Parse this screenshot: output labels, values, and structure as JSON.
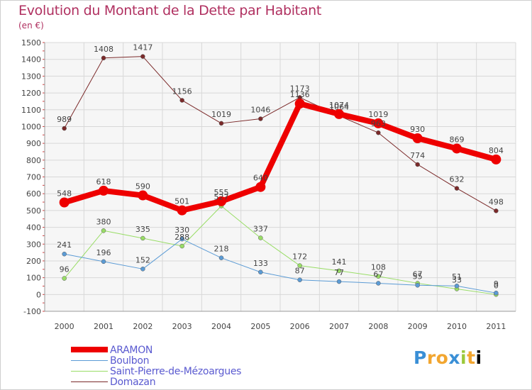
{
  "chart_data": {
    "type": "line",
    "title": "Evolution du Montant de la Dette par Habitant",
    "subtitle": "(en €)",
    "x": [
      "2000",
      "2001",
      "2002",
      "2003",
      "2004",
      "2005",
      "2006",
      "2007",
      "2008",
      "2009",
      "2010",
      "2011"
    ],
    "ylim": [
      -100,
      1500
    ],
    "yticks": [
      -100,
      0,
      100,
      200,
      300,
      400,
      500,
      600,
      700,
      800,
      900,
      1000,
      1100,
      1200,
      1300,
      1400,
      1500
    ],
    "grid": true,
    "legend_position": "bottom-left",
    "series": [
      {
        "name": "ARAMON",
        "color": "#ee0000",
        "width": 8,
        "marker": 7,
        "values": [
          548,
          618,
          590,
          501,
          555,
          640,
          1136,
          1074,
          1019,
          930,
          869,
          804
        ],
        "labels": [
          "548",
          "618",
          "590",
          "501",
          "555",
          "640",
          "1136",
          "1074",
          "1019",
          "930",
          "869",
          "804"
        ]
      },
      {
        "name": "Boulbon",
        "color": "#5b9bd5",
        "width": 1,
        "marker": 3,
        "values": [
          241,
          196,
          152,
          330,
          218,
          133,
          87,
          77,
          67,
          55,
          51,
          9
        ],
        "labels": [
          "241",
          "196",
          "152",
          "330",
          "218",
          "133",
          "87",
          "77",
          "67",
          "55",
          "51",
          "9"
        ]
      },
      {
        "name": "Saint-Pierre-de-Mézoargues",
        "color": "#99dd66",
        "width": 1,
        "marker": 3,
        "values": [
          96,
          380,
          335,
          288,
          527,
          337,
          172,
          141,
          108,
          67,
          33,
          0
        ],
        "labels": [
          "96",
          "380",
          "335",
          "288",
          "527",
          "337",
          "172",
          "141",
          "108",
          "67",
          "33",
          "0"
        ]
      },
      {
        "name": "Domazan",
        "color": "#7b2a2a",
        "width": 1,
        "marker": 3,
        "values": [
          989,
          1408,
          1417,
          1156,
          1019,
          1046,
          1173,
          1064,
          963,
          774,
          632,
          498
        ],
        "labels": [
          "989",
          "1408",
          "1417",
          "1156",
          "1019",
          "1046",
          "1173",
          "1064",
          "963",
          "774",
          "632",
          "498"
        ]
      }
    ]
  },
  "logo": {
    "letters": [
      "P",
      "r",
      "o",
      "x",
      "i",
      "t",
      "i"
    ]
  }
}
